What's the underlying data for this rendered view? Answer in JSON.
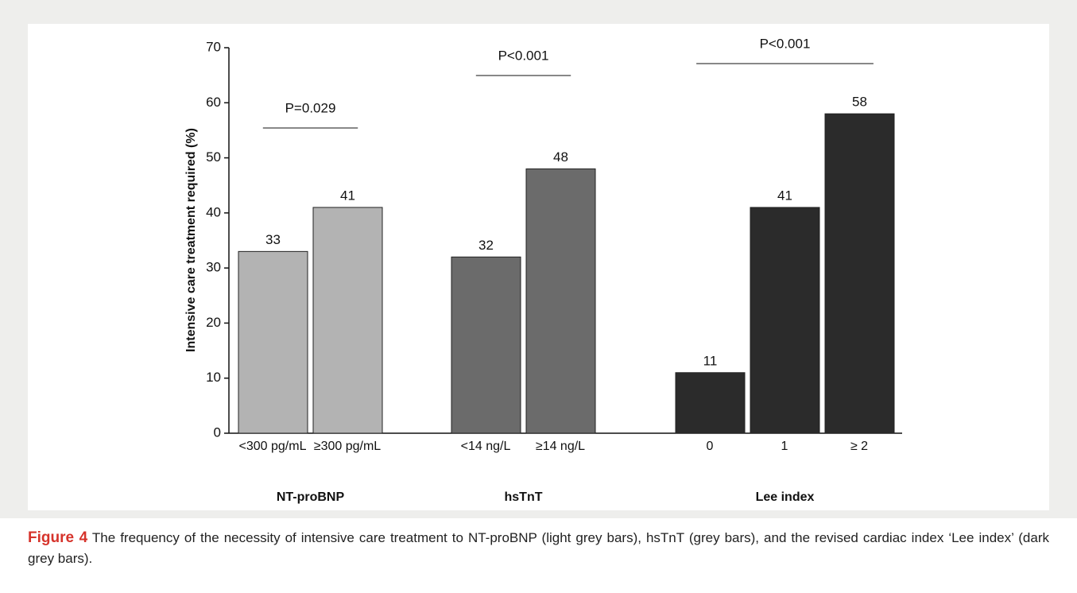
{
  "chart_data": {
    "type": "bar",
    "y_label": "Intensive care treatment required (%)",
    "ylim": [
      0,
      70
    ],
    "yticks": [
      0,
      10,
      20,
      30,
      40,
      50,
      60,
      70
    ],
    "groups": [
      {
        "name": "NT-proBNP",
        "color": "#b3b3b3",
        "p_value": "P=0.029",
        "categories": [
          "<300 pg/mL",
          "≥300 pg/mL"
        ],
        "values": [
          33,
          41
        ]
      },
      {
        "name": "hsTnT",
        "color": "#6b6b6b",
        "p_value": "P<0.001",
        "categories": [
          "<14 ng/L",
          "≥14 ng/L"
        ],
        "values": [
          32,
          48
        ]
      },
      {
        "name": "Lee index",
        "color": "#2b2b2b",
        "p_value": "P<0.001",
        "categories": [
          "0",
          "1",
          "≥ 2"
        ],
        "values": [
          11,
          41,
          58
        ]
      }
    ]
  },
  "caption": {
    "label": "Figure 4",
    "text": "The frequency of the necessity of intensive care treatment to NT-proBNP (light grey bars), hsTnT (grey bars), and the revised cardiac index ‘Lee index’ (dark grey bars)."
  }
}
